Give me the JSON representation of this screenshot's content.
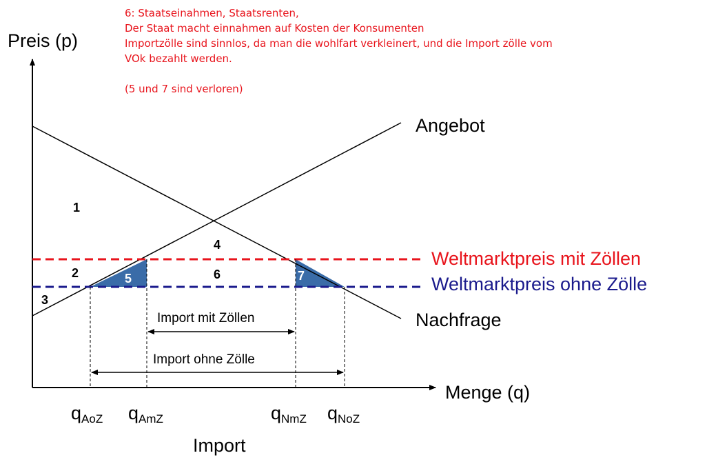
{
  "annotation": {
    "lines": [
      "6: Staatseinahmen, Staatsrenten,",
      "Der Staat macht einnahmen auf Kosten der Konsumenten",
      "Importzölle sind sinnlos, da man die wohlfart verkleinert, und die Import zölle vom",
      "VOk bezahlt werden.",
      "(5 und 7 sind verloren)"
    ]
  },
  "axes": {
    "y_label": "Preis (p)",
    "x_label": "Menge (q)",
    "below_label": "Import"
  },
  "curves": {
    "supply_label": "Angebot",
    "demand_label": "Nachfrage"
  },
  "prices": {
    "with_tariff_label": "Weltmarktpreis mit Zöllen",
    "without_tariff_label": "Weltmarktpreis ohne Zölle",
    "with_tariff_color": "#e8141c",
    "without_tariff_color": "#1a1a8c"
  },
  "areas": {
    "a1": "1",
    "a2": "2",
    "a3": "3",
    "a4": "4",
    "a5": "5",
    "a6": "6",
    "a7": "7",
    "loss_fill_color": "#3a6ca8"
  },
  "quantities": {
    "q": "q",
    "q_aoz_sub": "AoZ",
    "q_amz_sub": "AmZ",
    "q_nmz_sub": "NmZ",
    "q_noz_sub": "NoZ"
  },
  "import": {
    "with_tariff_label": "Import mit Zöllen",
    "without_tariff_label": "Import ohne Zölle"
  }
}
